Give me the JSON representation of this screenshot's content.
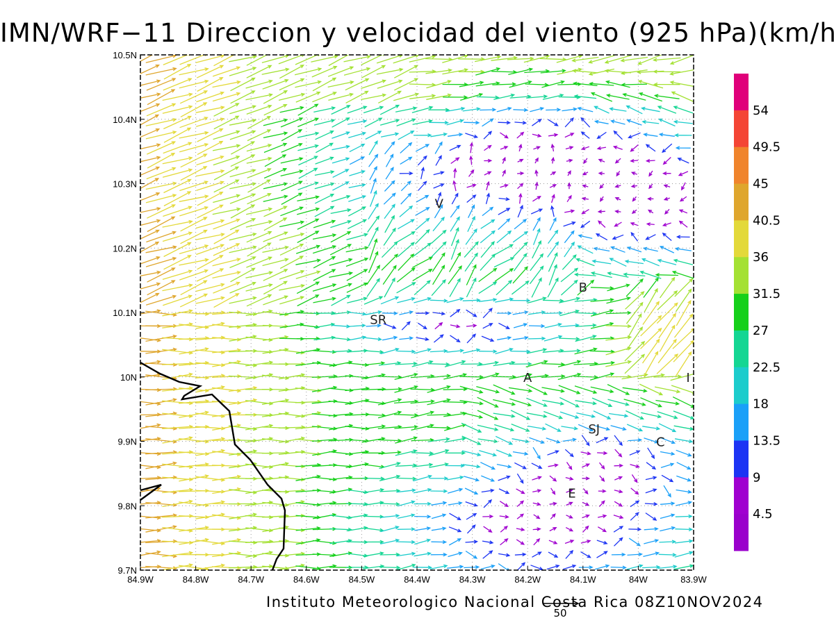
{
  "title": "IMN/WRF−11 Direccion y velocidad del viento (925 hPa)(km/h)",
  "footer": "Instituto Meteorologico Nacional Costa Rica 08Z10NOV2024",
  "map": {
    "lon_range": [
      -84.9,
      -83.9
    ],
    "lat_range": [
      9.7,
      10.5
    ],
    "x_ticks": [
      "84.9W",
      "84.8W",
      "84.7W",
      "84.6W",
      "84.5W",
      "84.4W",
      "84.3W",
      "84.2W",
      "84.1W",
      "84W",
      "83.9W"
    ],
    "y_ticks": [
      "9.7N",
      "9.8N",
      "9.9N",
      "10N",
      "10.1N",
      "10.2N",
      "10.3N",
      "10.4N",
      "10.5N"
    ],
    "grid": true,
    "places": [
      {
        "label": "V",
        "lon": -84.36,
        "lat": 10.27
      },
      {
        "label": "B",
        "lon": -84.1,
        "lat": 10.14
      },
      {
        "label": "SR",
        "lon": -84.47,
        "lat": 10.09
      },
      {
        "label": "A",
        "lon": -84.2,
        "lat": 10.0
      },
      {
        "label": "I",
        "lon": -83.91,
        "lat": 10.0
      },
      {
        "label": "SJ",
        "lon": -84.08,
        "lat": 9.92
      },
      {
        "label": "C",
        "lon": -83.96,
        "lat": 9.9
      },
      {
        "label": "E",
        "lon": -84.12,
        "lat": 9.82
      }
    ]
  },
  "colorbar": {
    "labels": [
      "54",
      "49.5",
      "45",
      "40.5",
      "36",
      "31.5",
      "27",
      "22.5",
      "18",
      "13.5",
      "9",
      "4.5"
    ],
    "colors": [
      "#e0007a",
      "#f44535",
      "#f0842c",
      "#dfa62d",
      "#e3d93a",
      "#a4e133",
      "#16d01a",
      "#14d693",
      "#1ccccc",
      "#1aa0f8",
      "#1c34f4",
      "#a000d0",
      "#9a00cc"
    ]
  },
  "reference_vector": {
    "label": "50"
  }
}
